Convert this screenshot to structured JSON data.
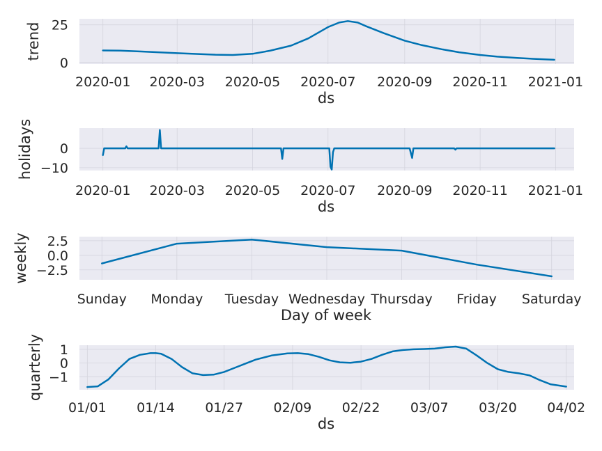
{
  "chart_data": [
    {
      "type": "line",
      "ylabel": "trend",
      "xlabel": "ds",
      "x_type": "date",
      "xlim": [
        "2019-12-13",
        "2021-01-16"
      ],
      "ylim": [
        -1,
        29
      ],
      "x_ticks": [
        "2020-01",
        "2020-03",
        "2020-05",
        "2020-07",
        "2020-09",
        "2020-11",
        "2021-01"
      ],
      "x_tick_values": [
        "2020-01-01",
        "2020-03-01",
        "2020-05-01",
        "2020-07-01",
        "2020-09-01",
        "2020-11-01",
        "2021-01-01"
      ],
      "y_ticks": [
        "0",
        "25"
      ],
      "y_tick_values": [
        0,
        25
      ],
      "grid": true,
      "series": [
        {
          "x": [
            "2020-01-01",
            "2020-01-15",
            "2020-02-01",
            "2020-03-01",
            "2020-04-01",
            "2020-04-15",
            "2020-05-01",
            "2020-05-15",
            "2020-06-01",
            "2020-06-15",
            "2020-07-01",
            "2020-07-10",
            "2020-07-17",
            "2020-07-25",
            "2020-08-01",
            "2020-08-15",
            "2020-09-01",
            "2020-09-15",
            "2020-10-01",
            "2020-10-15",
            "2020-11-01",
            "2020-11-15",
            "2020-12-01",
            "2020-12-15",
            "2020-12-31"
          ],
          "y": [
            8.0,
            7.9,
            7.3,
            6.2,
            5.2,
            5.0,
            5.8,
            7.8,
            11.2,
            16.0,
            23.5,
            26.5,
            27.5,
            26.5,
            24.0,
            19.5,
            14.5,
            11.5,
            8.8,
            6.8,
            5.0,
            3.9,
            3.0,
            2.4,
            1.8
          ]
        }
      ]
    },
    {
      "type": "line",
      "ylabel": "holidays",
      "xlabel": "ds",
      "x_type": "date",
      "xlim": [
        "2019-12-13",
        "2021-01-16"
      ],
      "ylim": [
        -11.5,
        10.5
      ],
      "x_ticks": [
        "2020-01",
        "2020-03",
        "2020-05",
        "2020-07",
        "2020-09",
        "2020-11",
        "2021-01"
      ],
      "x_tick_values": [
        "2020-01-01",
        "2020-03-01",
        "2020-05-01",
        "2020-07-01",
        "2020-09-01",
        "2020-11-01",
        "2021-01-01"
      ],
      "y_ticks": [
        "0",
        "−10"
      ],
      "y_tick_values": [
        0,
        -10
      ],
      "grid": true,
      "series": [
        {
          "x": [
            "2020-01-01",
            "2020-01-02",
            "2020-01-03",
            "2020-01-19",
            "2020-01-20",
            "2020-01-21",
            "2020-02-15",
            "2020-02-16",
            "2020-02-17",
            "2020-05-24",
            "2020-05-25",
            "2020-05-26",
            "2020-07-02",
            "2020-07-03",
            "2020-07-04",
            "2020-07-05",
            "2020-07-06",
            "2020-09-05",
            "2020-09-06",
            "2020-09-07",
            "2020-09-08",
            "2020-10-11",
            "2020-10-12",
            "2020-10-13",
            "2020-12-31"
          ],
          "y": [
            -3.5,
            0,
            0,
            0,
            1.0,
            0,
            0,
            9.5,
            0,
            0,
            -5.5,
            0,
            0,
            -9.5,
            -11.0,
            -2.0,
            0,
            0,
            -2.5,
            -5.0,
            0,
            0,
            -0.7,
            0,
            0
          ]
        }
      ]
    },
    {
      "type": "line",
      "ylabel": "weekly",
      "xlabel": "Day of week",
      "categories": [
        "Sunday",
        "Monday",
        "Tuesday",
        "Wednesday",
        "Thursday",
        "Friday",
        "Saturday"
      ],
      "ylim": [
        -4.2,
        3.2
      ],
      "y_ticks": [
        "2.5",
        "0.0",
        "−2.5"
      ],
      "y_tick_values": [
        2.5,
        0.0,
        -2.5
      ],
      "grid": true,
      "series": [
        {
          "values": [
            -1.4,
            2.0,
            2.7,
            1.4,
            0.8,
            -1.6,
            -3.6
          ]
        }
      ]
    },
    {
      "type": "line",
      "ylabel": "quarterly",
      "xlabel": "ds",
      "x_type": "day-of-quarter",
      "xlim": [
        -1.5,
        92.5
      ],
      "ylim": [
        -1.95,
        1.3
      ],
      "x_ticks": [
        "01/01",
        "01/14",
        "01/27",
        "02/09",
        "02/22",
        "03/07",
        "03/20",
        "04/02"
      ],
      "x_tick_values": [
        0,
        13,
        26,
        39,
        52,
        65,
        78,
        91
      ],
      "y_ticks": [
        "1",
        "0",
        "−1"
      ],
      "y_tick_values": [
        1,
        0,
        -1
      ],
      "grid": true,
      "series": [
        {
          "x": [
            0,
            2,
            4,
            6,
            8,
            10,
            12,
            13,
            14,
            16,
            18,
            20,
            22,
            24,
            26,
            28,
            30,
            32,
            35,
            38,
            40,
            42,
            44,
            46,
            48,
            50,
            52,
            54,
            56,
            58,
            60,
            62,
            64,
            66,
            68,
            70,
            72,
            74,
            76,
            78,
            80,
            82,
            84,
            86,
            88,
            91
          ],
          "y": [
            -1.75,
            -1.7,
            -1.2,
            -0.4,
            0.3,
            0.6,
            0.72,
            0.72,
            0.68,
            0.3,
            -0.3,
            -0.75,
            -0.88,
            -0.85,
            -0.65,
            -0.35,
            -0.05,
            0.25,
            0.55,
            0.7,
            0.72,
            0.65,
            0.45,
            0.2,
            0.05,
            0.02,
            0.1,
            0.3,
            0.6,
            0.85,
            0.95,
            1.0,
            1.02,
            1.05,
            1.15,
            1.2,
            1.05,
            0.55,
            0.0,
            -0.45,
            -0.65,
            -0.75,
            -0.9,
            -1.25,
            -1.55,
            -1.72
          ]
        }
      ]
    }
  ]
}
